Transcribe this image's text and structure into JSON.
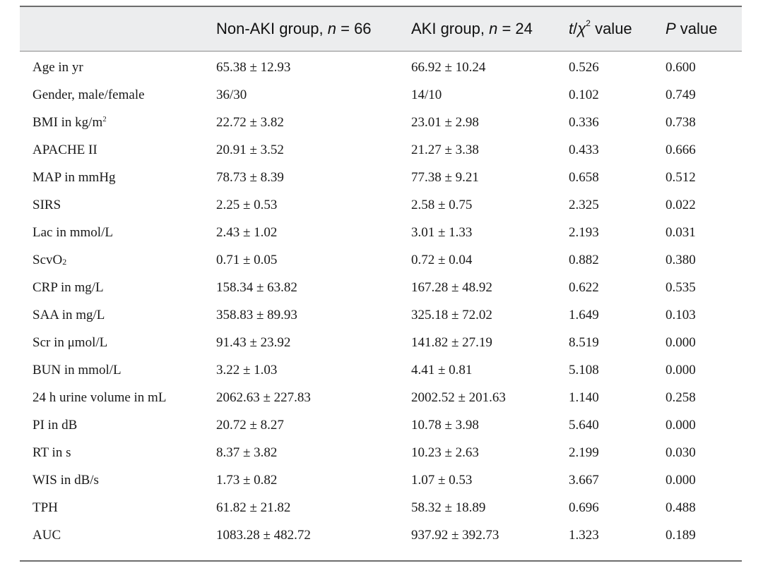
{
  "table": {
    "headers": {
      "non_aki_prefix": "Non-AKI group, ",
      "non_aki_n": "n",
      "non_aki_suffix": " = 66",
      "aki_prefix": "AKI group, ",
      "aki_n": "n",
      "aki_suffix": " = 24",
      "stat_t": "t",
      "stat_slash": "/",
      "stat_chi": "χ",
      "stat_sup": "2",
      "stat_suffix": " value",
      "p_italic": "P",
      "p_suffix": " value"
    },
    "rows": [
      {
        "label": "Age in yr",
        "label_extra": "",
        "non_aki": "65.38 ± 12.93",
        "aki": "66.92 ± 10.24",
        "stat": "0.526",
        "p": "0.600"
      },
      {
        "label": "Gender, male/female",
        "label_extra": "",
        "non_aki": "36/30",
        "aki": "14/10",
        "stat": "0.102",
        "p": "0.749"
      },
      {
        "label": "BMI in kg/m",
        "label_extra": "2",
        "non_aki": "22.72 ± 3.82",
        "aki": "23.01 ± 2.98",
        "stat": "0.336",
        "p": "0.738"
      },
      {
        "label": "APACHE II",
        "label_extra": "",
        "non_aki": "20.91 ± 3.52",
        "aki": "21.27 ± 3.38",
        "stat": "0.433",
        "p": "0.666"
      },
      {
        "label": "MAP in mmHg",
        "label_extra": "",
        "non_aki": "78.73 ± 8.39",
        "aki": "77.38 ± 9.21",
        "stat": "0.658",
        "p": "0.512"
      },
      {
        "label": "SIRS",
        "label_extra": "",
        "non_aki": "2.25 ± 0.53",
        "aki": "2.58 ± 0.75",
        "stat": "2.325",
        "p": "0.022"
      },
      {
        "label": "Lac in mmol/L",
        "label_extra": "",
        "non_aki": "2.43 ± 1.02",
        "aki": "3.01 ± 1.33",
        "stat": "2.193",
        "p": "0.031"
      },
      {
        "label": "ScvO",
        "label_extra": "2",
        "non_aki": "0.71 ± 0.05",
        "aki": "0.72 ± 0.04",
        "stat": "0.882",
        "p": "0.380"
      },
      {
        "label": "CRP in mg/L",
        "label_extra": "",
        "non_aki": "158.34 ± 63.82",
        "aki": "167.28 ± 48.92",
        "stat": "0.622",
        "p": "0.535"
      },
      {
        "label": "SAA in mg/L",
        "label_extra": "",
        "non_aki": "358.83 ± 89.93",
        "aki": "325.18 ± 72.02",
        "stat": "1.649",
        "p": "0.103"
      },
      {
        "label": "Scr in μmol/L",
        "label_extra": "",
        "non_aki": "91.43 ± 23.92",
        "aki": "141.82 ± 27.19",
        "stat": "8.519",
        "p": "0.000"
      },
      {
        "label": "BUN in mmol/L",
        "label_extra": "",
        "non_aki": "3.22 ± 1.03",
        "aki": "4.41 ± 0.81",
        "stat": "5.108",
        "p": "0.000"
      },
      {
        "label": "24 h urine volume in mL",
        "label_extra": "",
        "non_aki": "2062.63 ± 227.83",
        "aki": "2002.52 ± 201.63",
        "stat": "1.140",
        "p": "0.258"
      },
      {
        "label": "PI in dB",
        "label_extra": "",
        "non_aki": "20.72 ± 8.27",
        "aki": "10.78 ± 3.98",
        "stat": "5.640",
        "p": "0.000"
      },
      {
        "label": "RT in s",
        "label_extra": "",
        "non_aki": "8.37 ± 3.82",
        "aki": "10.23 ± 2.63",
        "stat": "2.199",
        "p": "0.030"
      },
      {
        "label": "WIS in dB/s",
        "label_extra": "",
        "non_aki": "1.73 ± 0.82",
        "aki": "1.07 ± 0.53",
        "stat": "3.667",
        "p": "0.000"
      },
      {
        "label": "TPH",
        "label_extra": "",
        "non_aki": "61.82 ± 21.82",
        "aki": "58.32 ± 18.89",
        "stat": "0.696",
        "p": "0.488"
      },
      {
        "label": "AUC",
        "label_extra": "",
        "non_aki": "1083.28 ± 482.72",
        "aki": "937.92 ± 392.73",
        "stat": "1.323",
        "p": "0.189"
      }
    ]
  }
}
